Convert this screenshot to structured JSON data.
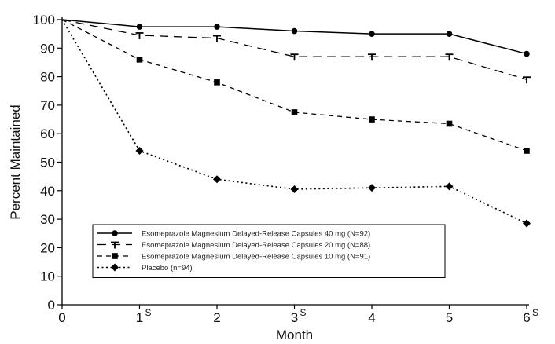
{
  "chart_data": {
    "type": "line",
    "xlabel": "Month",
    "ylabel": "Percent Maintained",
    "xlim": [
      0,
      6
    ],
    "ylim": [
      0,
      100
    ],
    "x_ticks": [
      "0",
      "1",
      "2",
      "3",
      "4",
      "5",
      "6"
    ],
    "x_tick_superscripts": [
      "",
      "S",
      "",
      "S",
      "",
      "",
      "S"
    ],
    "y_ticks": [
      "0",
      "10",
      "20",
      "30",
      "40",
      "50",
      "60",
      "70",
      "80",
      "90",
      "100"
    ],
    "x": [
      0,
      1,
      2,
      3,
      4,
      5,
      6
    ],
    "grid": false,
    "legend_position": "bottom-left",
    "series": [
      {
        "name": "Esomeprazole Magnesium Delayed-Release Capsules 40 mg (N=92)",
        "values": [
          100,
          97.5,
          97.5,
          96,
          95,
          95,
          88
        ],
        "marker": "circle",
        "line_style": "solid",
        "color": "#000000"
      },
      {
        "name": "Esomeprazole Magnesium Delayed-Release Capsules 20 mg (N=88)",
        "values": [
          100,
          94.5,
          93.5,
          87,
          87,
          87,
          79
        ],
        "marker": "tee",
        "line_style": "long-dash",
        "color": "#000000"
      },
      {
        "name": "Esomeprazole Magnesium Delayed-Release Capsules 10 mg (N=91)",
        "values": [
          100,
          86,
          78,
          67.5,
          65,
          63.5,
          54
        ],
        "marker": "square",
        "line_style": "dash",
        "color": "#000000"
      },
      {
        "name": "Placebo (n=94)",
        "values": [
          100,
          54,
          44,
          40.5,
          41,
          41.5,
          28.5
        ],
        "marker": "diamond",
        "line_style": "dot",
        "color": "#000000"
      }
    ]
  }
}
